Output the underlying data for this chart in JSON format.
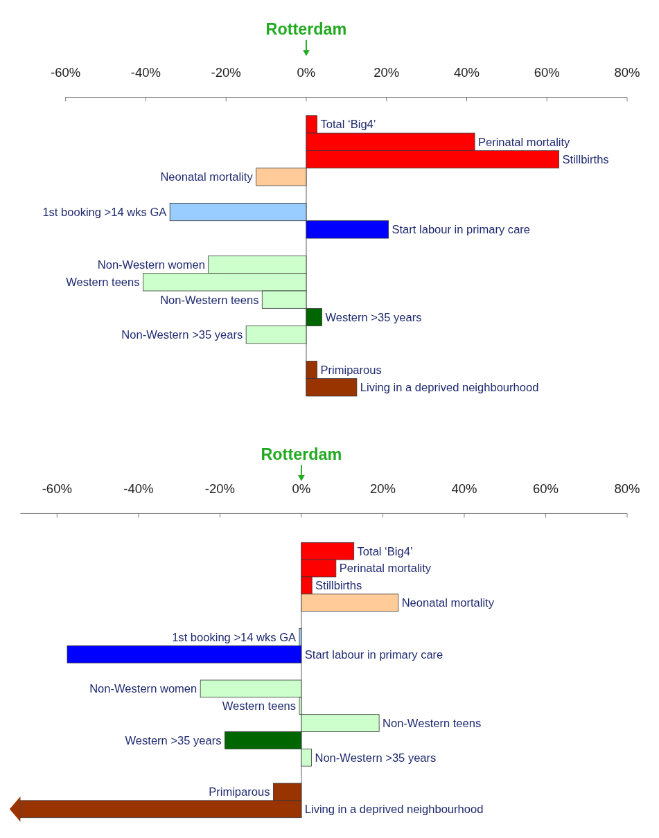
{
  "chart_data": [
    {
      "type": "bar",
      "orientation": "horizontal",
      "title": "Rotterdam",
      "categories": [
        "Total ‘Big4’",
        "Perinatal mortality",
        "Stillbirths",
        "Neonatal mortality",
        null,
        "1st booking >14 wks GA",
        "Start labour in primary care",
        null,
        "Non-Western women",
        "Western teens",
        "Non-Western teens",
        "Western >35 years",
        "Non-Western >35 years",
        null,
        "Primiparous",
        "Living in a deprived neighbourhood"
      ],
      "values": [
        2.7,
        42,
        63,
        -12.5,
        null,
        -34,
        20.5,
        null,
        -24.4,
        -40.7,
        -11,
        3.9,
        -15,
        null,
        2.7,
        12.6
      ],
      "colors": [
        "#ff0000",
        "#ff0000",
        "#ff0000",
        "#ffcc99",
        null,
        "#99ccff",
        "#0000ff",
        null,
        "#ccffcc",
        "#ccffcc",
        "#ccffcc",
        "#006600",
        "#ccffcc",
        null,
        "#993300",
        "#993300"
      ],
      "xlim": [
        -60,
        80
      ],
      "xticks": [
        {
          "value": -60,
          "label": "-60%"
        },
        {
          "value": -40,
          "label": "-40%"
        },
        {
          "value": -20,
          "label": "-20%"
        },
        {
          "value": 0,
          "label": "0%"
        },
        {
          "value": 20,
          "label": "20%"
        },
        {
          "value": 40,
          "label": "40%"
        },
        {
          "value": 60,
          "label": "60%"
        },
        {
          "value": 80,
          "label": "80%"
        }
      ]
    },
    {
      "type": "bar",
      "orientation": "horizontal",
      "title": "Rotterdam",
      "categories": [
        "Total ‘Big4’",
        "Perinatal mortality",
        "Stillbirths",
        "Neonatal mortality",
        null,
        "1st booking >14 wks GA",
        "Start labour in primary care",
        null,
        "Non-Western women",
        "Western teens",
        "Non-Western teens",
        "Western >35 years",
        "Non-Western >35 years",
        null,
        "Primiparous",
        "Living in a deprived neighbourhood"
      ],
      "values": [
        12.9,
        8.5,
        2.6,
        23.8,
        null,
        -0.5,
        -57.5,
        null,
        -24.8,
        -0.5,
        19.1,
        -18.8,
        2.5,
        null,
        -6.9,
        -69
      ],
      "colors": [
        "#ff0000",
        "#ff0000",
        "#ff0000",
        "#ffcc99",
        null,
        "#99ccff",
        "#0000ff",
        null,
        "#ccffcc",
        "#ccffcc",
        "#ccffcc",
        "#006600",
        "#ccffcc",
        null,
        "#993300",
        "#993300"
      ],
      "xlim": [
        -69,
        80
      ],
      "xticks": [
        {
          "value": -60,
          "label": "-60%"
        },
        {
          "value": -40,
          "label": "-40%"
        },
        {
          "value": -20,
          "label": "-20%"
        },
        {
          "value": 0,
          "label": "0%"
        },
        {
          "value": 20,
          "label": "20%"
        },
        {
          "value": 40,
          "label": "40%"
        },
        {
          "value": 60,
          "label": "60%"
        },
        {
          "value": 80,
          "label": "80%"
        }
      ]
    }
  ]
}
